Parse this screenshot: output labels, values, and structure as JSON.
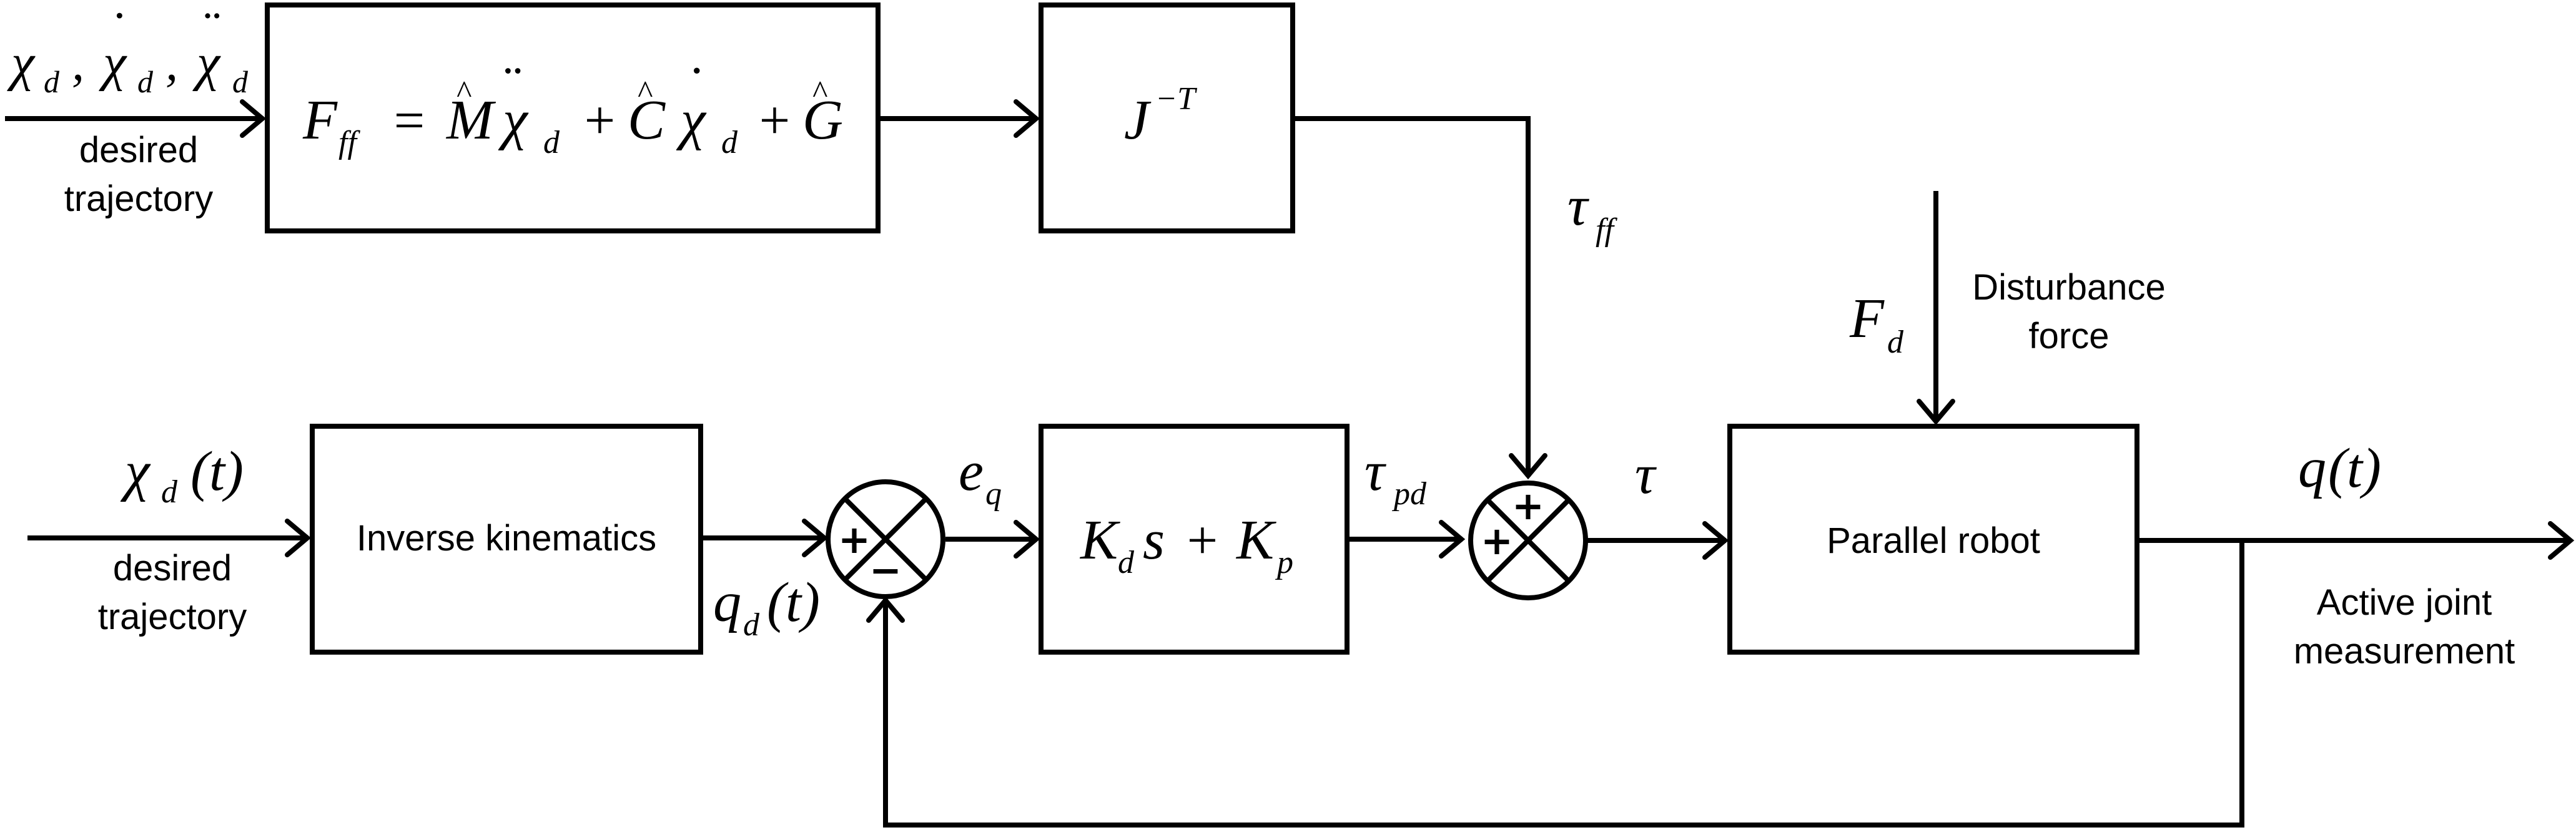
{
  "blocks": {
    "feedforward": {
      "F": "F",
      "F_sub": "ff",
      "eq": "=",
      "M": "M",
      "M_hat": "^",
      "chi1": "χ",
      "chi1_dots": "¨",
      "chi1_sub": "d",
      "plus1": "+",
      "C": "C",
      "C_hat": "^",
      "chi2": "χ",
      "chi2_dot": "˙",
      "chi2_sub": "d",
      "plus2": "+",
      "G": "G",
      "G_hat": "^"
    },
    "jacobian": {
      "J": "J",
      "exp": "−T"
    },
    "inverse_kinematics": {
      "label": "Inverse kinematics"
    },
    "pd_controller": {
      "Kd": "K",
      "Kd_sub": "d",
      "s": "s",
      "plus": "+",
      "Kp": "K",
      "Kp_sub": "p"
    },
    "robot": {
      "label": "Parallel robot"
    }
  },
  "inputs": {
    "top": {
      "chi_a": "χ",
      "a_sub": "d",
      "comma1": ",",
      "chi_b": "χ",
      "b_dot": "˙",
      "b_sub": "d",
      "comma2": ",",
      "chi_c": "χ",
      "c_dots": "¨",
      "c_sub": "d",
      "label_line1": "desired",
      "label_line2": "trajectory"
    },
    "bottom": {
      "chi": "χ",
      "sub": "d",
      "arg": "(t)",
      "label_line1": "desired",
      "label_line2": "trajectory"
    }
  },
  "signals": {
    "qd": {
      "sym": "q",
      "sub": "d",
      "arg": "(t)"
    },
    "eq": {
      "sym": "e",
      "sub": "q"
    },
    "tau_pd": {
      "sym": "τ",
      "sub": "pd"
    },
    "tau_ff": {
      "sym": "τ",
      "sub": "ff"
    },
    "tau": {
      "sym": "τ"
    },
    "Fd": {
      "sym": "F",
      "sub": "d"
    },
    "disturbance_line1": "Disturbance",
    "disturbance_line2": "force",
    "q": {
      "sym": "q",
      "arg": "(t)"
    },
    "output_line1": "Active joint",
    "output_line2": "measurement"
  },
  "summing_junctions": {
    "error": {
      "sign_left": "+",
      "sign_bottom": "−"
    },
    "torque": {
      "sign_top": "+",
      "sign_left": "+"
    }
  }
}
